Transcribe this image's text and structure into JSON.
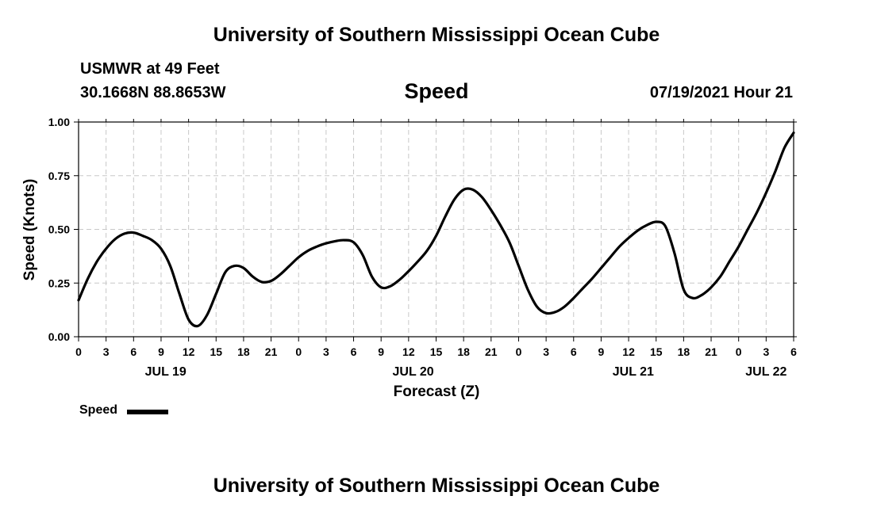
{
  "header": {
    "title": "University of Southern Mississippi Ocean Cube",
    "station": "USMWR at 49 Feet",
    "coords": "30.1668N  88.8653W",
    "variable": "Speed",
    "datetime": "07/19/2021 Hour 21"
  },
  "footer": {
    "title": "University of Southern Mississippi Ocean Cube"
  },
  "legend": {
    "label": "Speed"
  },
  "chart_data": {
    "type": "line",
    "title": "Speed",
    "xlabel": "Forecast (Z)",
    "ylabel": "Speed (Knots)",
    "xlim": [
      0,
      78
    ],
    "ylim": [
      0,
      1
    ],
    "yticks": [
      0,
      0.25,
      0.5,
      0.75,
      1.0
    ],
    "ytick_labels": [
      "0.00",
      "0.25",
      "0.50",
      "0.75",
      "1.00"
    ],
    "xtick_hours": [
      0,
      3,
      6,
      9,
      12,
      15,
      18,
      21,
      24,
      27,
      30,
      33,
      36,
      39,
      42,
      45,
      48,
      51,
      54,
      57,
      60,
      63,
      66,
      69,
      72,
      75,
      78
    ],
    "xtick_labels": [
      "0",
      "3",
      "6",
      "9",
      "12",
      "15",
      "18",
      "21",
      "0",
      "3",
      "6",
      "9",
      "12",
      "15",
      "18",
      "21",
      "0",
      "3",
      "6",
      "9",
      "12",
      "15",
      "18",
      "21",
      "0",
      "3",
      "6"
    ],
    "date_labels": [
      {
        "text": "JUL 19",
        "hour": 9.5
      },
      {
        "text": "JUL 20",
        "hour": 36.5
      },
      {
        "text": "JUL 21",
        "hour": 60.5
      },
      {
        "text": "JUL 22",
        "hour": 75
      }
    ],
    "grid": true,
    "legend_position": "bottom-left",
    "series": [
      {
        "name": "Speed",
        "color": "#000000",
        "x": [
          0,
          1,
          2,
          3,
          4,
          5,
          6,
          7,
          8,
          9,
          10,
          11,
          12,
          13,
          14,
          15,
          16,
          17,
          18,
          19,
          20,
          21,
          22,
          23,
          24,
          25,
          26,
          27,
          28,
          29,
          30,
          31,
          32,
          33,
          34,
          35,
          36,
          37,
          38,
          39,
          40,
          41,
          42,
          43,
          44,
          45,
          46,
          47,
          48,
          49,
          50,
          51,
          52,
          53,
          54,
          55,
          56,
          57,
          58,
          59,
          60,
          61,
          62,
          63,
          64,
          65,
          66,
          67,
          68,
          69,
          70,
          71,
          72,
          73,
          74,
          75,
          76,
          77,
          78
        ],
        "values": [
          0.17,
          0.27,
          0.35,
          0.41,
          0.455,
          0.48,
          0.485,
          0.47,
          0.45,
          0.41,
          0.33,
          0.2,
          0.08,
          0.05,
          0.1,
          0.2,
          0.3,
          0.33,
          0.32,
          0.28,
          0.255,
          0.26,
          0.29,
          0.33,
          0.37,
          0.4,
          0.42,
          0.435,
          0.445,
          0.45,
          0.44,
          0.38,
          0.28,
          0.23,
          0.235,
          0.265,
          0.305,
          0.35,
          0.4,
          0.47,
          0.56,
          0.64,
          0.685,
          0.685,
          0.65,
          0.59,
          0.52,
          0.44,
          0.33,
          0.22,
          0.14,
          0.11,
          0.115,
          0.14,
          0.18,
          0.225,
          0.27,
          0.32,
          0.37,
          0.42,
          0.46,
          0.495,
          0.52,
          0.535,
          0.515,
          0.39,
          0.22,
          0.18,
          0.195,
          0.23,
          0.28,
          0.35,
          0.42,
          0.5,
          0.58,
          0.67,
          0.77,
          0.88,
          0.95
        ]
      }
    ]
  }
}
